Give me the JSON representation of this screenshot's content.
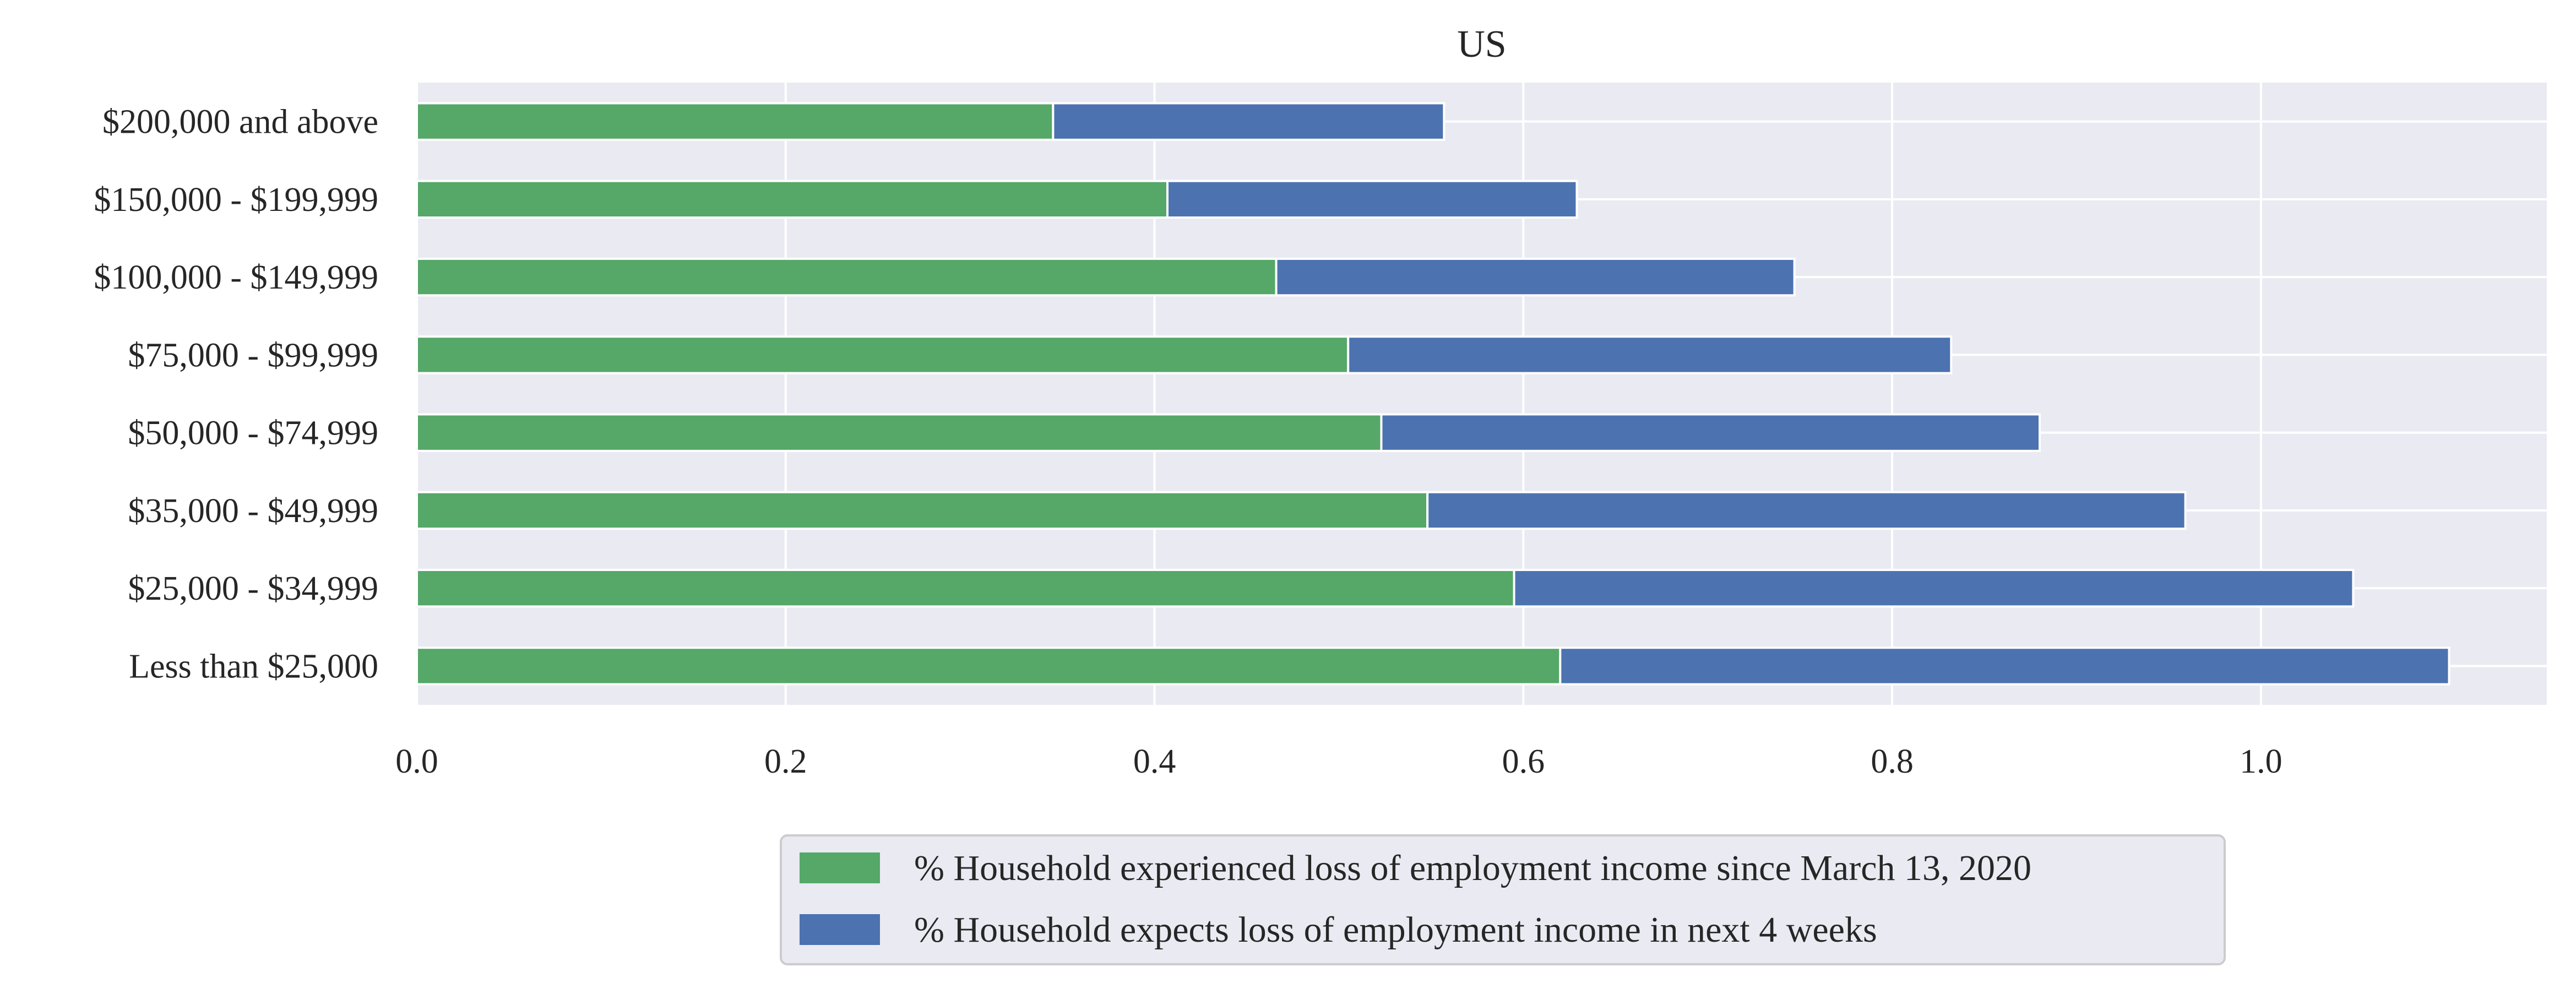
{
  "chart_data": {
    "type": "bar",
    "orientation": "horizontal",
    "stacked": true,
    "title": "US",
    "xlabel": "",
    "ylabel": "",
    "categories": [
      "Less than $25,000",
      "$25,000 - $34,999",
      "$35,000 - $49,999",
      "$50,000 - $74,999",
      "$75,000 - $99,999",
      "$100,000 - $149,999",
      "$150,000 - $199,999",
      "$200,000 and above"
    ],
    "series": [
      {
        "name": "% Household experienced loss of employment income since March 13, 2020",
        "color": "#55a868",
        "values": [
          0.62,
          0.595,
          0.548,
          0.523,
          0.505,
          0.466,
          0.407,
          0.345
        ]
      },
      {
        "name": "% Household expects loss of employment income in next 4 weeks",
        "color": "#4c72b0",
        "values": [
          0.482,
          0.455,
          0.411,
          0.357,
          0.327,
          0.281,
          0.222,
          0.212
        ]
      }
    ],
    "xlim": [
      0,
      1.155
    ],
    "xticks": [
      "0.0",
      "0.2",
      "0.4",
      "0.6",
      "0.8",
      "1.0"
    ],
    "grid": true,
    "legend_position": "bottom-center",
    "background_color": "#eaeaf2"
  }
}
